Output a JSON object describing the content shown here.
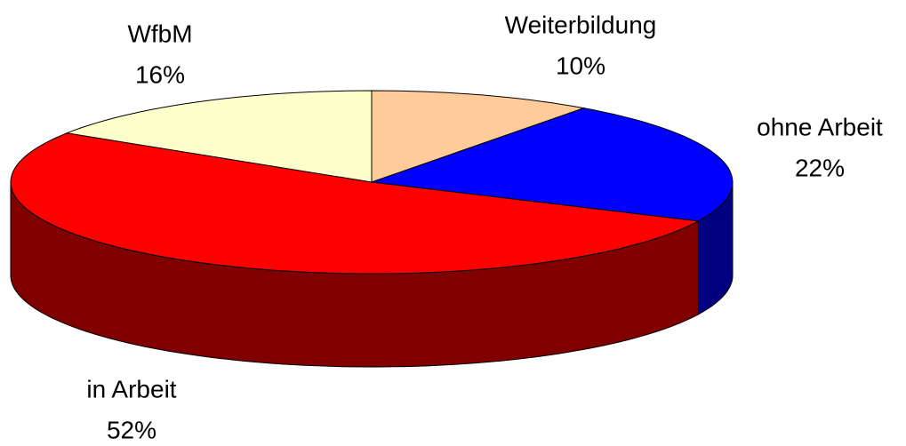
{
  "chart_data": {
    "type": "pie",
    "view": "3d",
    "categories": [
      "Weiterbildung",
      "ohne Arbeit",
      "in Arbeit",
      "WfbM"
    ],
    "values": [
      10,
      22,
      52,
      16
    ],
    "value_labels": [
      "10%",
      "22%",
      "52%",
      "16%"
    ],
    "colors": [
      "#FFCC99",
      "#0000FF",
      "#FF0000",
      "#FFFFCC"
    ]
  }
}
